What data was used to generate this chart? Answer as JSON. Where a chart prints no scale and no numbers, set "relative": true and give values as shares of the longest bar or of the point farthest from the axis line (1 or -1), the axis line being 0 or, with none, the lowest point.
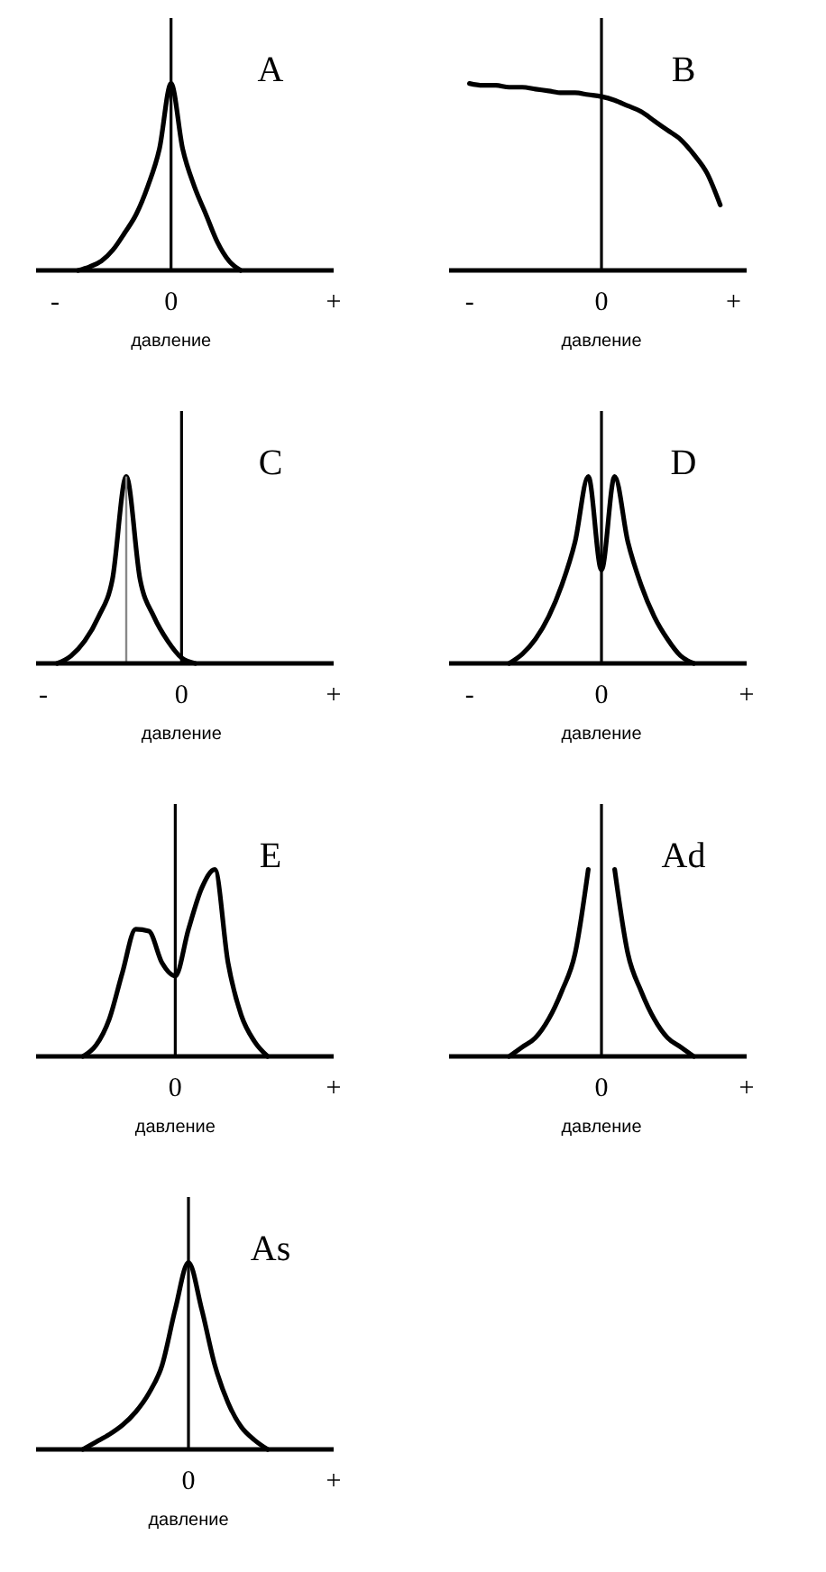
{
  "chart_data": [
    {
      "type": "line",
      "title": "A",
      "xlabel": "давление",
      "relative": true,
      "categories": [
        null,
        "-",
        null,
        null,
        null,
        null,
        null,
        null,
        null,
        null,
        null,
        "0",
        null,
        null,
        null,
        null,
        null,
        null,
        null,
        null,
        null,
        null,
        null,
        null,
        null,
        "+"
      ],
      "ref_lines": [
        {
          "axis": "x",
          "value": "0"
        }
      ],
      "series": [
        {
          "color": "#000000",
          "values": [
            null,
            null,
            null,
            0,
            0.02,
            0.05,
            0.11,
            0.2,
            0.3,
            0.45,
            0.65,
            1,
            0.65,
            0.45,
            0.3,
            0.15,
            0.05,
            0,
            null,
            null,
            null,
            null,
            null,
            null,
            null,
            null
          ]
        }
      ]
    },
    {
      "type": "line",
      "title": "B",
      "xlabel": "давление",
      "relative": true,
      "categories": [
        null,
        "-",
        null,
        null,
        null,
        null,
        null,
        null,
        null,
        null,
        null,
        "0",
        null,
        null,
        null,
        null,
        null,
        null,
        null,
        null,
        null,
        "+",
        null
      ],
      "ref_lines": [
        {
          "axis": "x",
          "value": "0"
        }
      ],
      "series": [
        {
          "color": "#000000",
          "values": [
            null,
            1,
            0.99,
            0.99,
            0.98,
            0.98,
            0.97,
            0.96,
            0.95,
            0.95,
            0.94,
            0.93,
            0.91,
            0.88,
            0.85,
            0.8,
            0.75,
            0.7,
            0.62,
            0.52,
            0.35,
            null,
            null
          ]
        }
      ]
    },
    {
      "type": "line",
      "title": "C",
      "xlabel": "давление",
      "relative": true,
      "categories": [
        "-",
        null,
        null,
        null,
        null,
        null,
        null,
        null,
        null,
        null,
        "0",
        null,
        null,
        null,
        null,
        null,
        null,
        null,
        null,
        null,
        null,
        "+"
      ],
      "ref_lines": [
        {
          "axis": "x",
          "value": "0"
        }
      ],
      "series": [
        {
          "type": "bar",
          "color": "#888888",
          "values": [
            null,
            null,
            null,
            null,
            null,
            null,
            1,
            null,
            null,
            null,
            null,
            null,
            null,
            null,
            null,
            null,
            null,
            null,
            null,
            null,
            null,
            null
          ]
        },
        {
          "color": "#000000",
          "values": [
            null,
            0,
            0.04,
            0.12,
            0.25,
            0.45,
            1,
            0.45,
            0.25,
            0.12,
            0.03,
            0,
            null,
            null,
            null,
            null,
            null,
            null,
            null,
            null,
            null,
            null
          ]
        }
      ]
    },
    {
      "type": "line",
      "title": "D",
      "xlabel": "давление",
      "relative": true,
      "categories": [
        null,
        "-",
        null,
        null,
        null,
        null,
        null,
        null,
        null,
        null,
        null,
        "0",
        null,
        null,
        null,
        null,
        null,
        null,
        null,
        null,
        null,
        null,
        "+"
      ],
      "ref_lines": [
        {
          "axis": "x",
          "value": "0"
        }
      ],
      "series": [
        {
          "color": "#000000",
          "values": [
            null,
            null,
            null,
            null,
            0,
            0.05,
            0.13,
            0.25,
            0.42,
            0.65,
            1,
            0.5,
            1,
            0.65,
            0.42,
            0.25,
            0.13,
            0.04,
            0,
            null,
            null,
            null,
            null
          ]
        }
      ]
    },
    {
      "type": "line",
      "title": "E",
      "xlabel": "давление",
      "relative": true,
      "categories": [
        null,
        null,
        null,
        null,
        null,
        null,
        null,
        null,
        null,
        null,
        "0",
        null,
        null,
        null,
        null,
        null,
        null,
        null,
        null,
        null,
        null,
        null,
        "+"
      ],
      "ref_lines": [
        {
          "axis": "x",
          "value": "0"
        }
      ],
      "series": [
        {
          "color": "#000000",
          "values": [
            null,
            null,
            null,
            0,
            0.06,
            0.2,
            0.45,
            0.68,
            0.67,
            0.5,
            0.43,
            0.68,
            0.9,
            1,
            0.5,
            0.22,
            0.08,
            0,
            null,
            null,
            null,
            null,
            null
          ]
        }
      ]
    },
    {
      "type": "line",
      "title": "Ad",
      "xlabel": "давление",
      "relative": true,
      "categories": [
        null,
        null,
        null,
        null,
        null,
        null,
        null,
        null,
        null,
        null,
        null,
        "0",
        null,
        null,
        null,
        null,
        null,
        null,
        null,
        null,
        null,
        null,
        "+"
      ],
      "ref_lines": [
        {
          "axis": "x",
          "value": "0"
        }
      ],
      "series": [
        {
          "color": "#000000",
          "values": [
            null,
            null,
            null,
            null,
            0,
            0.05,
            0.1,
            0.2,
            0.35,
            0.55,
            1,
            null,
            1,
            0.55,
            0.35,
            0.2,
            0.1,
            0.05,
            0,
            null,
            null,
            null,
            null
          ]
        }
      ]
    },
    {
      "type": "line",
      "title": "As",
      "xlabel": "давление",
      "relative": true,
      "categories": [
        null,
        null,
        null,
        null,
        null,
        null,
        null,
        null,
        null,
        null,
        null,
        "0",
        null,
        null,
        null,
        null,
        null,
        null,
        null,
        null,
        null,
        null,
        "+"
      ],
      "ref_lines": [
        {
          "axis": "x",
          "value": "0"
        }
      ],
      "series": [
        {
          "color": "#000000",
          "values": [
            null,
            null,
            null,
            0,
            0.04,
            0.08,
            0.13,
            0.2,
            0.3,
            0.45,
            0.75,
            1,
            0.75,
            0.45,
            0.25,
            0.12,
            0.05,
            0,
            null,
            null,
            null,
            null,
            null
          ]
        }
      ]
    }
  ]
}
